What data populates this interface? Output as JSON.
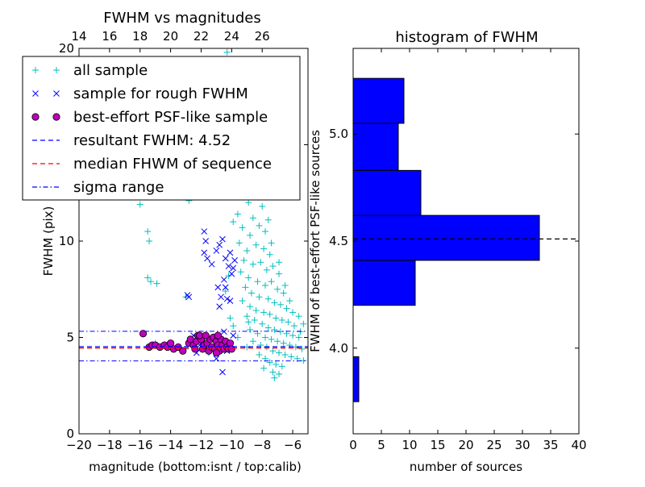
{
  "colors": {
    "all_sample": "#00bfbf",
    "rough_sample": "#0000ff",
    "best_sample_face": "#bf00bf",
    "resultant_line": "#0000ff",
    "median_line": "#ff0000",
    "sigma_line": "#0000ff",
    "hist_bar": "#0000ff",
    "hist_median_line": "#000000"
  },
  "chart_data": [
    {
      "type": "scatter",
      "title": "FWHM vs magnitudes",
      "xlabel": "magnitude (bottom:isnt / top:calib)",
      "ylabel": "FWHM (pix)",
      "xlim": [
        -20,
        -5
      ],
      "ylim": [
        0,
        20
      ],
      "x_ticks": [
        -20,
        -18,
        -16,
        -14,
        -12,
        -10,
        -8,
        -6
      ],
      "x_tick_labels": [
        "−20",
        "−18",
        "−16",
        "−14",
        "−12",
        "−10",
        "−8",
        "−6"
      ],
      "y_ticks": [
        0,
        5,
        10,
        15,
        20
      ],
      "y_tick_labels": [
        "0",
        "5",
        "10",
        "15",
        "20"
      ],
      "top_axis": {
        "ticks": [
          14,
          16,
          18,
          20,
          22,
          24,
          26
        ],
        "tick_labels": [
          "14",
          "16",
          "18",
          "20",
          "22",
          "24",
          "26"
        ],
        "offset": 34
      },
      "grid": false,
      "legend_position": "top-left",
      "legend": [
        {
          "label": "all sample",
          "marker": "plus"
        },
        {
          "label": "sample for rough FWHM",
          "marker": "x"
        },
        {
          "label": "best-effort PSF-like sample",
          "marker": "circle"
        },
        {
          "label": "resultant FWHM: 4.52",
          "line": "dashed",
          "color": "resultant"
        },
        {
          "label": "median FHWM of sequence",
          "line": "dashed",
          "color": "median"
        },
        {
          "label": "sigma range",
          "line": "dashdot",
          "color": "sigma"
        }
      ],
      "hlines": {
        "resultant_fwhm": 4.52,
        "median_fwhm": 4.45,
        "sigma_range": [
          3.78,
          5.32
        ]
      },
      "series": [
        {
          "name": "all sample",
          "marker": "plus",
          "points": [
            [
              -15.6,
              12.7
            ],
            [
              -15.4,
              12.9
            ],
            [
              -16.0,
              11.9
            ],
            [
              -15.5,
              10.5
            ],
            [
              -15.4,
              10.0
            ],
            [
              -15.5,
              8.1
            ],
            [
              -15.3,
              7.9
            ],
            [
              -14.9,
              7.8
            ],
            [
              -13.0,
              7.1
            ],
            [
              -12.8,
              12.1
            ],
            [
              -11.6,
              15.2
            ],
            [
              -11.3,
              15.7
            ],
            [
              -10.8,
              17.2
            ],
            [
              -10.5,
              19.4
            ],
            [
              -10.3,
              19.8
            ],
            [
              -9.8,
              17.6
            ],
            [
              -9.5,
              16.3
            ],
            [
              -9.8,
              15.1
            ],
            [
              -10.0,
              14.1
            ],
            [
              -9.4,
              13.6
            ],
            [
              -9.1,
              12.9
            ],
            [
              -8.9,
              12.0
            ],
            [
              -9.6,
              11.4
            ],
            [
              -9.3,
              10.7
            ],
            [
              -8.6,
              11.2
            ],
            [
              -8.2,
              10.8
            ],
            [
              -8.8,
              10.3
            ],
            [
              -9.5,
              9.9
            ],
            [
              -9.0,
              9.5
            ],
            [
              -8.4,
              9.8
            ],
            [
              -7.9,
              9.6
            ],
            [
              -7.5,
              9.3
            ],
            [
              -9.2,
              9.0
            ],
            [
              -8.6,
              8.8
            ],
            [
              -8.1,
              8.9
            ],
            [
              -7.7,
              8.5
            ],
            [
              -7.3,
              8.7
            ],
            [
              -6.9,
              8.3
            ],
            [
              -9.4,
              8.4
            ],
            [
              -8.9,
              8.1
            ],
            [
              -8.3,
              7.9
            ],
            [
              -7.8,
              7.7
            ],
            [
              -7.4,
              7.9
            ],
            [
              -7.0,
              7.5
            ],
            [
              -6.6,
              7.3
            ],
            [
              -9.1,
              7.6
            ],
            [
              -8.7,
              7.3
            ],
            [
              -8.2,
              7.1
            ],
            [
              -7.6,
              7.0
            ],
            [
              -7.2,
              6.8
            ],
            [
              -6.8,
              6.7
            ],
            [
              -6.4,
              6.5
            ],
            [
              -9.3,
              6.9
            ],
            [
              -8.8,
              6.6
            ],
            [
              -8.4,
              6.4
            ],
            [
              -7.9,
              6.3
            ],
            [
              -7.5,
              6.2
            ],
            [
              -7.1,
              6.0
            ],
            [
              -6.7,
              5.9
            ],
            [
              -6.3,
              5.8
            ],
            [
              -5.9,
              5.6
            ],
            [
              -9.0,
              6.1
            ],
            [
              -8.5,
              5.9
            ],
            [
              -8.0,
              5.7
            ],
            [
              -7.6,
              5.5
            ],
            [
              -7.2,
              5.4
            ],
            [
              -6.8,
              5.3
            ],
            [
              -6.4,
              5.2
            ],
            [
              -6.0,
              5.1
            ],
            [
              -5.6,
              5.0
            ],
            [
              -8.8,
              5.4
            ],
            [
              -8.3,
              5.2
            ],
            [
              -7.8,
              5.0
            ],
            [
              -7.4,
              4.9
            ],
            [
              -7.0,
              4.8
            ],
            [
              -6.6,
              4.7
            ],
            [
              -6.2,
              4.6
            ],
            [
              -5.8,
              4.5
            ],
            [
              -5.4,
              4.4
            ],
            [
              -8.6,
              4.8
            ],
            [
              -8.1,
              4.6
            ],
            [
              -7.7,
              4.5
            ],
            [
              -7.3,
              4.3
            ],
            [
              -6.9,
              4.2
            ],
            [
              -6.5,
              4.1
            ],
            [
              -6.1,
              4.0
            ],
            [
              -5.7,
              3.9
            ],
            [
              -5.3,
              3.8
            ],
            [
              -7.5,
              3.7
            ],
            [
              -7.1,
              3.6
            ],
            [
              -6.7,
              3.5
            ],
            [
              -7.9,
              3.4
            ],
            [
              -7.3,
              3.2
            ],
            [
              -6.9,
              3.1
            ],
            [
              -7.2,
              2.9
            ],
            [
              -7.8,
              3.9
            ],
            [
              -8.2,
              4.1
            ],
            [
              -9.6,
              5.0
            ],
            [
              -9.0,
              4.5
            ],
            [
              -8.9,
              5.8
            ],
            [
              -6.0,
              6.3
            ],
            [
              -5.6,
              6.1
            ],
            [
              -5.3,
              5.7
            ],
            [
              -5.5,
              5.3
            ],
            [
              -6.2,
              6.9
            ],
            [
              -6.5,
              7.7
            ],
            [
              -6.9,
              8.9
            ],
            [
              -7.4,
              9.9
            ],
            [
              -7.8,
              10.5
            ],
            [
              -8.5,
              12.3
            ],
            [
              -8.0,
              11.8
            ],
            [
              -7.6,
              11.1
            ],
            [
              -9.7,
              12.6
            ],
            [
              -9.9,
              11.0
            ],
            [
              -10.2,
              8.2
            ],
            [
              -10.4,
              7.4
            ],
            [
              -10.1,
              6.0
            ],
            [
              -9.9,
              5.6
            ],
            [
              -10.3,
              4.8
            ],
            [
              -10.8,
              4.3
            ],
            [
              -11.5,
              4.2
            ],
            [
              -12.5,
              4.6
            ],
            [
              -13.0,
              4.4
            ],
            [
              -14.3,
              4.6
            ],
            [
              -15.0,
              4.7
            ]
          ]
        },
        {
          "name": "sample for rough FWHM",
          "marker": "x",
          "points": [
            [
              -11.8,
              10.5
            ],
            [
              -11.7,
              10.0
            ],
            [
              -11.8,
              9.4
            ],
            [
              -11.6,
              9.1
            ],
            [
              -11.3,
              8.8
            ],
            [
              -11.0,
              9.5
            ],
            [
              -10.4,
              9.1
            ],
            [
              -10.2,
              8.7
            ],
            [
              -10.0,
              8.3
            ],
            [
              -9.8,
              9.0
            ],
            [
              -10.5,
              8.0
            ],
            [
              -10.9,
              7.6
            ],
            [
              -10.7,
              7.1
            ],
            [
              -10.3,
              7.0
            ],
            [
              -12.9,
              7.2
            ],
            [
              -12.8,
              7.1
            ],
            [
              -11.5,
              13.0
            ],
            [
              -11.2,
              12.9
            ],
            [
              -10.9,
              13.2
            ],
            [
              -10.6,
              13.1
            ],
            [
              -10.2,
              15.3
            ],
            [
              -11.9,
              13.8
            ],
            [
              -10.8,
              9.8
            ],
            [
              -10.1,
              9.4
            ],
            [
              -10.6,
              10.1
            ],
            [
              -9.9,
              8.6
            ],
            [
              -10.4,
              7.6
            ],
            [
              -10.1,
              6.9
            ],
            [
              -10.8,
              6.6
            ],
            [
              -11.4,
              5.0
            ],
            [
              -12.1,
              4.6
            ],
            [
              -11.9,
              4.8
            ],
            [
              -12.5,
              5.1
            ],
            [
              -10.6,
              3.2
            ],
            [
              -11.0,
              3.9
            ],
            [
              -10.5,
              5.3
            ],
            [
              -9.9,
              5.1
            ],
            [
              -10.3,
              4.3
            ],
            [
              -12.3,
              4.2
            ]
          ]
        },
        {
          "name": "best-effort PSF-like sample",
          "marker": "circle",
          "points": [
            [
              -15.8,
              5.2
            ],
            [
              -15.4,
              4.5
            ],
            [
              -15.2,
              4.6
            ],
            [
              -15.0,
              4.6
            ],
            [
              -14.7,
              4.5
            ],
            [
              -14.4,
              4.6
            ],
            [
              -14.2,
              4.5
            ],
            [
              -14.0,
              4.7
            ],
            [
              -13.8,
              4.4
            ],
            [
              -13.5,
              4.5
            ],
            [
              -13.2,
              4.3
            ],
            [
              -12.8,
              4.7
            ],
            [
              -12.7,
              4.9
            ],
            [
              -12.5,
              4.6
            ],
            [
              -12.3,
              4.8
            ],
            [
              -12.2,
              5.1
            ],
            [
              -12.0,
              4.9
            ],
            [
              -11.9,
              4.4
            ],
            [
              -11.8,
              4.6
            ],
            [
              -11.6,
              4.7
            ],
            [
              -11.5,
              4.3
            ],
            [
              -11.4,
              4.9
            ],
            [
              -11.3,
              4.5
            ],
            [
              -11.2,
              5.0
            ],
            [
              -11.1,
              4.4
            ],
            [
              -11.0,
              4.8
            ],
            [
              -10.9,
              4.6
            ],
            [
              -10.8,
              4.3
            ],
            [
              -10.7,
              4.9
            ],
            [
              -10.6,
              4.6
            ],
            [
              -10.5,
              4.4
            ],
            [
              -10.4,
              4.8
            ],
            [
              -10.3,
              4.5
            ],
            [
              -10.2,
              4.4
            ],
            [
              -10.1,
              4.7
            ],
            [
              -10.0,
              4.4
            ],
            [
              -12.1,
              5.1
            ],
            [
              -11.7,
              5.1
            ],
            [
              -10.9,
              5.1
            ],
            [
              -12.4,
              4.4
            ],
            [
              -11.0,
              4.2
            ]
          ]
        }
      ]
    },
    {
      "type": "bar",
      "orientation": "horizontal",
      "title": "histogram of FWHM",
      "xlabel": "number of sources",
      "ylabel": "FWHM of best-effort PSF-like sources",
      "xlim": [
        0,
        40
      ],
      "ylim": [
        3.6,
        5.4
      ],
      "x_ticks": [
        0,
        5,
        10,
        15,
        20,
        25,
        30,
        35,
        40
      ],
      "x_tick_labels": [
        "0",
        "5",
        "10",
        "15",
        "20",
        "25",
        "30",
        "35",
        "40"
      ],
      "y_ticks": [
        4.0,
        4.5,
        5.0
      ],
      "y_tick_labels": [
        "4.0",
        "4.5",
        "5.0"
      ],
      "grid": false,
      "bins": [
        {
          "low": 3.75,
          "high": 3.96,
          "count": 1
        },
        {
          "low": 4.2,
          "high": 4.41,
          "count": 11
        },
        {
          "low": 4.41,
          "high": 4.62,
          "count": 33
        },
        {
          "low": 4.62,
          "high": 4.83,
          "count": 12
        },
        {
          "low": 4.83,
          "high": 5.05,
          "count": 8
        },
        {
          "low": 5.05,
          "high": 5.26,
          "count": 9
        }
      ],
      "median_line": 4.51
    }
  ]
}
